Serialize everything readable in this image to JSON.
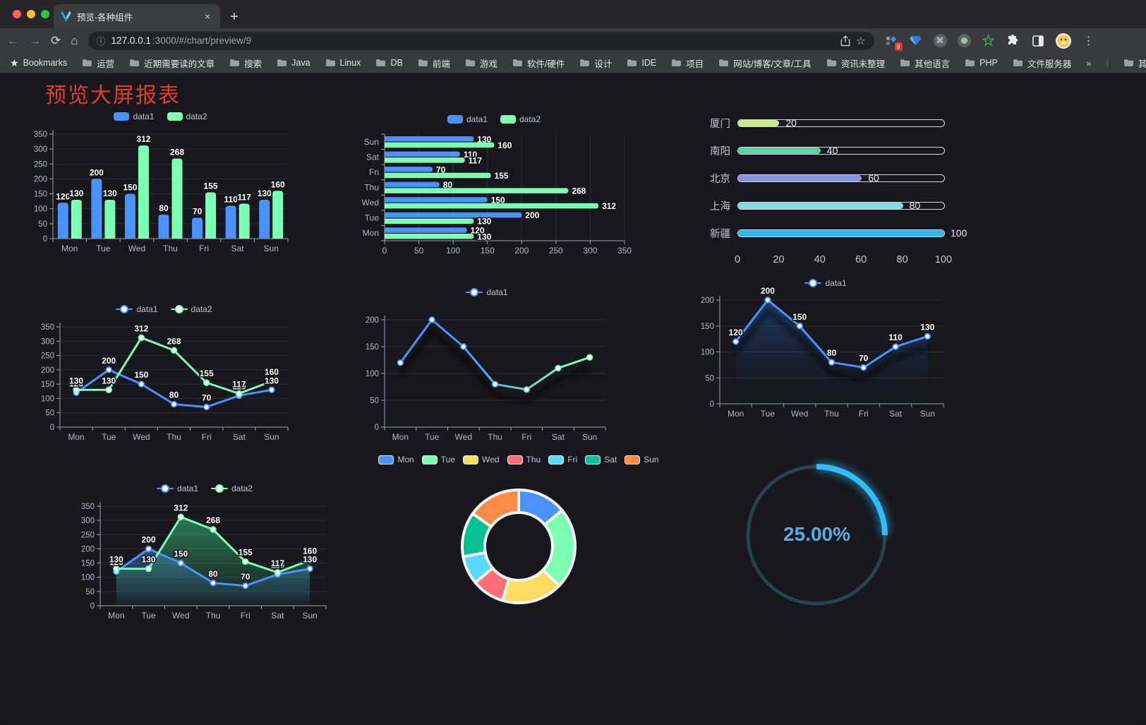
{
  "browser": {
    "tab_title": "预览-各种组件",
    "url": "127.0.0.1:3000/#/chart/preview/9",
    "url_host": "127.0.0.1",
    "url_rest": ":3000/#/chart/preview/9",
    "new_tab_symbol": "+",
    "close_symbol": "×",
    "extension_badge": "9",
    "bookmarks_label": "Bookmarks",
    "bookmarks": [
      "运营",
      "近期需要读的文章",
      "搜索",
      "Java",
      "Linux",
      "DB",
      "前端",
      "游戏",
      "软件/硬件",
      "设计",
      "IDE",
      "项目",
      "网站/博客/文章/工具",
      "资讯未整理",
      "其他语言",
      "PHP",
      "文件服务器"
    ],
    "overflow_symbol": "»",
    "other_bookmarks": "其他书签"
  },
  "page": {
    "title": "预览大屏报表",
    "title_color": "#e63c2a",
    "background": "#17171d"
  },
  "chart_data": [
    {
      "type": "bar",
      "categories": [
        "Mon",
        "Tue",
        "Wed",
        "Thu",
        "Fri",
        "Sat",
        "Sun"
      ],
      "series": [
        {
          "name": "data1",
          "color": "#4992ff",
          "values": [
            120,
            200,
            150,
            80,
            70,
            110,
            130
          ]
        },
        {
          "name": "data2",
          "color": "#7cffb2",
          "values": [
            130,
            130,
            312,
            268,
            155,
            117,
            160
          ]
        }
      ],
      "ylim": [
        0,
        350
      ],
      "ytick_step": 50,
      "legend_position": "top",
      "data_labels": true
    },
    {
      "type": "hbar",
      "categories": [
        "Mon",
        "Tue",
        "Wed",
        "Thu",
        "Fri",
        "Sat",
        "Sun"
      ],
      "series": [
        {
          "name": "data1",
          "color": "#4992ff",
          "values": [
            120,
            200,
            150,
            80,
            70,
            110,
            130
          ]
        },
        {
          "name": "data2",
          "color": "#7cffb2",
          "values": [
            130,
            130,
            312,
            268,
            155,
            117,
            160
          ]
        }
      ],
      "xlim": [
        0,
        350
      ],
      "xtick_step": 50,
      "legend_position": "top",
      "data_labels": true,
      "note": "Mon at bottom, Sun at top"
    },
    {
      "type": "progress",
      "max": 100,
      "axis_ticks": [
        0,
        20,
        40,
        60,
        80,
        100
      ],
      "items": [
        {
          "label": "厦门",
          "value": 20,
          "color": "#cbe88c"
        },
        {
          "label": "南阳",
          "value": 40,
          "color": "#59d5a5"
        },
        {
          "label": "北京",
          "value": 60,
          "color": "#8a90e2"
        },
        {
          "label": "上海",
          "value": 80,
          "color": "#7edce8"
        },
        {
          "label": "新疆",
          "value": 100,
          "color": "#38b3e6"
        }
      ]
    },
    {
      "type": "line",
      "categories": [
        "Mon",
        "Tue",
        "Wed",
        "Thu",
        "Fri",
        "Sat",
        "Sun"
      ],
      "series": [
        {
          "name": "data1",
          "color": "#4992ff",
          "values": [
            120,
            200,
            150,
            80,
            70,
            110,
            130
          ]
        },
        {
          "name": "data2",
          "color": "#7cffb2",
          "values": [
            130,
            130,
            312,
            268,
            155,
            117,
            160
          ]
        }
      ],
      "ylim": [
        0,
        350
      ],
      "ytick_step": 50,
      "legend_position": "top",
      "data_labels": true,
      "markers": true
    },
    {
      "type": "line",
      "categories": [
        "Mon",
        "Tue",
        "Wed",
        "Thu",
        "Fri",
        "Sat",
        "Sun"
      ],
      "series": [
        {
          "name": "data1",
          "color_gradient": [
            "#4992ff",
            "#7cffb2"
          ],
          "values": [
            120,
            200,
            150,
            80,
            70,
            110,
            130
          ]
        }
      ],
      "ylim": [
        0,
        200
      ],
      "ytick_step": 50,
      "legend_position": "top",
      "data_labels": false,
      "markers": true,
      "shadow": true
    },
    {
      "type": "area",
      "categories": [
        "Mon",
        "Tue",
        "Wed",
        "Thu",
        "Fri",
        "Sat",
        "Sun"
      ],
      "series": [
        {
          "name": "data1",
          "color": "#4992ff",
          "values": [
            120,
            200,
            150,
            80,
            70,
            110,
            130
          ],
          "area": true,
          "area_from": "rgba(40,90,160,0.6)",
          "area_to": "rgba(20,30,50,0.05)"
        }
      ],
      "ylim": [
        0,
        200
      ],
      "ytick_step": 50,
      "legend_position": "top",
      "data_labels": true,
      "markers": true,
      "shadow": true
    },
    {
      "type": "area",
      "categories": [
        "Mon",
        "Tue",
        "Wed",
        "Thu",
        "Fri",
        "Sat",
        "Sun"
      ],
      "series": [
        {
          "name": "data1",
          "color": "#4992ff",
          "values": [
            120,
            200,
            150,
            80,
            70,
            110,
            130
          ],
          "area": true,
          "area_from": "rgba(73,146,255,0.45)",
          "area_to": "rgba(73,146,255,0.02)"
        },
        {
          "name": "data2",
          "color": "#7cffb2",
          "values": [
            130,
            130,
            312,
            268,
            155,
            117,
            160
          ],
          "area": true,
          "area_from": "rgba(60,200,130,0.55)",
          "area_to": "rgba(60,200,130,0.03)"
        }
      ],
      "ylim": [
        0,
        350
      ],
      "ytick_step": 50,
      "legend_position": "top",
      "data_labels": true,
      "markers": true
    },
    {
      "type": "donut",
      "legend_position": "top",
      "items": [
        {
          "label": "Mon",
          "value": 120,
          "color": "#4992ff"
        },
        {
          "label": "Tue",
          "value": 200,
          "color": "#7cffb2"
        },
        {
          "label": "Wed",
          "value": 150,
          "color": "#fddd60"
        },
        {
          "label": "Thu",
          "value": 80,
          "color": "#ff6e76"
        },
        {
          "label": "Fri",
          "value": 70,
          "color": "#58d9f9"
        },
        {
          "label": "Sat",
          "value": 110,
          "color": "#05c091"
        },
        {
          "label": "Sun",
          "value": 130,
          "color": "#ff8a45"
        }
      ]
    },
    {
      "type": "gauge",
      "value": 25,
      "display": "25.00%",
      "color": "#2fbcf7",
      "track_color": "#25424e",
      "text_color": "#57ace0"
    }
  ]
}
